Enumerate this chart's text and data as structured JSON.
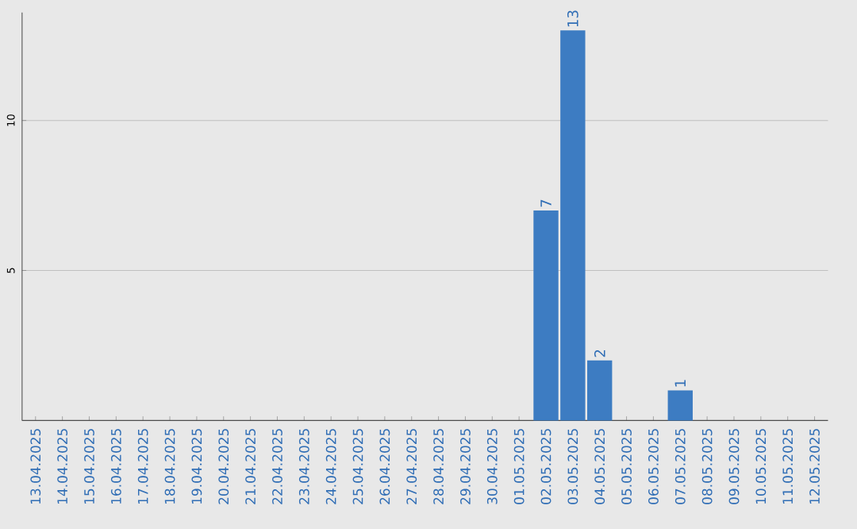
{
  "chart_data": {
    "type": "bar",
    "categories": [
      "13.04.2025",
      "14.04.2025",
      "15.04.2025",
      "16.04.2025",
      "17.04.2025",
      "18.04.2025",
      "19.04.2025",
      "20.04.2025",
      "21.04.2025",
      "22.04.2025",
      "23.04.2025",
      "24.04.2025",
      "25.04.2025",
      "26.04.2025",
      "27.04.2025",
      "28.04.2025",
      "29.04.2025",
      "30.04.2025",
      "01.05.2025",
      "02.05.2025",
      "03.05.2025",
      "04.05.2025",
      "05.05.2025",
      "06.05.2025",
      "07.05.2025",
      "08.05.2025",
      "09.05.2025",
      "10.05.2025",
      "11.05.2025",
      "12.05.2025"
    ],
    "values": [
      0,
      0,
      0,
      0,
      0,
      0,
      0,
      0,
      0,
      0,
      0,
      0,
      0,
      0,
      0,
      0,
      0,
      0,
      0,
      7,
      13,
      2,
      0,
      0,
      1,
      0,
      0,
      0,
      0,
      0
    ],
    "value_labels": [
      null,
      null,
      null,
      null,
      null,
      null,
      null,
      null,
      null,
      null,
      null,
      null,
      null,
      null,
      null,
      null,
      null,
      null,
      null,
      "7",
      "13",
      "2",
      null,
      null,
      "1",
      null,
      null,
      null,
      null,
      null
    ],
    "color": "#3d7cc2",
    "ylim": [
      0,
      13.6
    ],
    "yticks": [
      5,
      10
    ],
    "grid": "y"
  }
}
